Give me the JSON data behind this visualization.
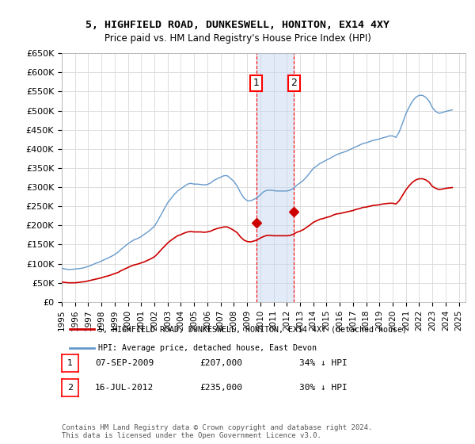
{
  "title": "5, HIGHFIELD ROAD, DUNKESWELL, HONITON, EX14 4XY",
  "subtitle": "Price paid vs. HM Land Registry's House Price Index (HPI)",
  "ylabel": "",
  "ylim": [
    0,
    650000
  ],
  "yticks": [
    0,
    50000,
    100000,
    150000,
    200000,
    250000,
    300000,
    350000,
    400000,
    450000,
    500000,
    550000,
    600000,
    650000
  ],
  "ytick_labels": [
    "£0",
    "£50K",
    "£100K",
    "£150K",
    "£200K",
    "£250K",
    "£300K",
    "£350K",
    "£400K",
    "£450K",
    "£500K",
    "£550K",
    "£600K",
    "£650K"
  ],
  "xlim_start": 1995.0,
  "xlim_end": 2025.5,
  "transaction1_x": 2009.69,
  "transaction1_y": 207000,
  "transaction1_label": "1",
  "transaction2_x": 2012.54,
  "transaction2_y": 235000,
  "transaction2_label": "2",
  "shade_color": "#c6d9f1",
  "shade_alpha": 0.5,
  "line_property_color": "#cc0000",
  "line_hpi_color": "#6699cc",
  "legend_property": "5, HIGHFIELD ROAD, DUNKESWELL, HONITON, EX14 4XY (detached house)",
  "legend_hpi": "HPI: Average price, detached house, East Devon",
  "table_rows": [
    {
      "num": "1",
      "date": "07-SEP-2009",
      "price": "£207,000",
      "hpi": "34% ↓ HPI"
    },
    {
      "num": "2",
      "date": "16-JUL-2012",
      "price": "£235,000",
      "hpi": "30% ↓ HPI"
    }
  ],
  "footnote": "Contains HM Land Registry data © Crown copyright and database right 2024.\nThis data is licensed under the Open Government Licence v3.0.",
  "background_color": "#ffffff",
  "grid_color": "#dddddd",
  "hpi_data_x": [
    1995.0,
    1995.25,
    1995.5,
    1995.75,
    1996.0,
    1996.25,
    1996.5,
    1996.75,
    1997.0,
    1997.25,
    1997.5,
    1997.75,
    1998.0,
    1998.25,
    1998.5,
    1998.75,
    1999.0,
    1999.25,
    1999.5,
    1999.75,
    2000.0,
    2000.25,
    2000.5,
    2000.75,
    2001.0,
    2001.25,
    2001.5,
    2001.75,
    2002.0,
    2002.25,
    2002.5,
    2002.75,
    2003.0,
    2003.25,
    2003.5,
    2003.75,
    2004.0,
    2004.25,
    2004.5,
    2004.75,
    2005.0,
    2005.25,
    2005.5,
    2005.75,
    2006.0,
    2006.25,
    2006.5,
    2006.75,
    2007.0,
    2007.25,
    2007.5,
    2007.75,
    2008.0,
    2008.25,
    2008.5,
    2008.75,
    2009.0,
    2009.25,
    2009.5,
    2009.75,
    2010.0,
    2010.25,
    2010.5,
    2010.75,
    2011.0,
    2011.25,
    2011.5,
    2011.75,
    2012.0,
    2012.25,
    2012.5,
    2012.75,
    2013.0,
    2013.25,
    2013.5,
    2013.75,
    2014.0,
    2014.25,
    2014.5,
    2014.75,
    2015.0,
    2015.25,
    2015.5,
    2015.75,
    2016.0,
    2016.25,
    2016.5,
    2016.75,
    2017.0,
    2017.25,
    2017.5,
    2017.75,
    2018.0,
    2018.25,
    2018.5,
    2018.75,
    2019.0,
    2019.25,
    2019.5,
    2019.75,
    2020.0,
    2020.25,
    2020.5,
    2020.75,
    2021.0,
    2021.25,
    2021.5,
    2021.75,
    2022.0,
    2022.25,
    2022.5,
    2022.75,
    2023.0,
    2023.25,
    2023.5,
    2023.75,
    2024.0,
    2024.25,
    2024.5
  ],
  "hpi_data_y": [
    88000,
    86000,
    85000,
    85000,
    86000,
    87000,
    88000,
    90000,
    93000,
    96000,
    100000,
    103000,
    107000,
    111000,
    115000,
    119000,
    124000,
    130000,
    138000,
    145000,
    152000,
    158000,
    163000,
    166000,
    171000,
    177000,
    183000,
    190000,
    198000,
    212000,
    228000,
    244000,
    259000,
    270000,
    281000,
    290000,
    296000,
    302000,
    308000,
    310000,
    308000,
    308000,
    307000,
    306000,
    307000,
    311000,
    318000,
    322000,
    326000,
    330000,
    330000,
    323000,
    315000,
    303000,
    286000,
    272000,
    265000,
    264000,
    268000,
    272000,
    280000,
    288000,
    292000,
    292000,
    291000,
    290000,
    290000,
    290000,
    290000,
    292000,
    297000,
    305000,
    311000,
    318000,
    327000,
    338000,
    349000,
    355000,
    362000,
    366000,
    371000,
    375000,
    380000,
    385000,
    388000,
    391000,
    394000,
    398000,
    402000,
    406000,
    410000,
    414000,
    416000,
    419000,
    422000,
    424000,
    426000,
    429000,
    431000,
    434000,
    434000,
    430000,
    445000,
    468000,
    492000,
    510000,
    525000,
    535000,
    540000,
    540000,
    535000,
    525000,
    508000,
    498000,
    493000,
    495000,
    498000,
    500000,
    502000
  ],
  "property_data_x": [
    1995.0,
    1995.25,
    1995.5,
    1995.75,
    1996.0,
    1996.25,
    1996.5,
    1996.75,
    1997.0,
    1997.25,
    1997.5,
    1997.75,
    1998.0,
    1998.25,
    1998.5,
    1998.75,
    1999.0,
    1999.25,
    1999.5,
    1999.75,
    2000.0,
    2000.25,
    2000.5,
    2000.75,
    2001.0,
    2001.25,
    2001.5,
    2001.75,
    2002.0,
    2002.25,
    2002.5,
    2002.75,
    2003.0,
    2003.25,
    2003.5,
    2003.75,
    2004.0,
    2004.25,
    2004.5,
    2004.75,
    2005.0,
    2005.25,
    2005.5,
    2005.75,
    2006.0,
    2006.25,
    2006.5,
    2006.75,
    2007.0,
    2007.25,
    2007.5,
    2007.75,
    2008.0,
    2008.25,
    2008.5,
    2008.75,
    2009.0,
    2009.25,
    2009.5,
    2009.75,
    2010.0,
    2010.25,
    2010.5,
    2010.75,
    2011.0,
    2011.25,
    2011.5,
    2011.75,
    2012.0,
    2012.25,
    2012.5,
    2012.75,
    2013.0,
    2013.25,
    2013.5,
    2013.75,
    2014.0,
    2014.25,
    2014.5,
    2014.75,
    2015.0,
    2015.25,
    2015.5,
    2015.75,
    2016.0,
    2016.25,
    2016.5,
    2016.75,
    2017.0,
    2017.25,
    2017.5,
    2017.75,
    2018.0,
    2018.25,
    2018.5,
    2018.75,
    2019.0,
    2019.25,
    2019.5,
    2019.75,
    2020.0,
    2020.25,
    2020.5,
    2020.75,
    2021.0,
    2021.25,
    2021.5,
    2021.75,
    2022.0,
    2022.25,
    2022.5,
    2022.75,
    2023.0,
    2023.25,
    2023.5,
    2023.75,
    2024.0,
    2024.25,
    2024.5
  ],
  "property_data_y": [
    52000,
    51000,
    50000,
    50000,
    50000,
    51000,
    52000,
    53000,
    55000,
    57000,
    59000,
    61000,
    63000,
    66000,
    68000,
    71000,
    74000,
    77000,
    82000,
    86000,
    90000,
    94000,
    97000,
    99000,
    102000,
    105000,
    109000,
    113000,
    118000,
    126000,
    136000,
    145000,
    154000,
    161000,
    167000,
    173000,
    176000,
    180000,
    183000,
    184000,
    183000,
    183000,
    183000,
    182000,
    183000,
    185000,
    189000,
    192000,
    194000,
    196000,
    196000,
    192000,
    187000,
    181000,
    170000,
    162000,
    158000,
    157000,
    159000,
    162000,
    167000,
    171000,
    174000,
    174000,
    173000,
    173000,
    173000,
    173000,
    173000,
    174000,
    177000,
    182000,
    185000,
    189000,
    195000,
    201000,
    208000,
    212000,
    216000,
    218000,
    221000,
    223000,
    227000,
    230000,
    231000,
    233000,
    235000,
    237000,
    239000,
    242000,
    244000,
    247000,
    248000,
    250000,
    252000,
    253000,
    254000,
    256000,
    257000,
    258000,
    258000,
    256000,
    265000,
    279000,
    293000,
    304000,
    313000,
    319000,
    322000,
    322000,
    319000,
    313000,
    302000,
    297000,
    294000,
    295000,
    297000,
    298000,
    299000
  ]
}
